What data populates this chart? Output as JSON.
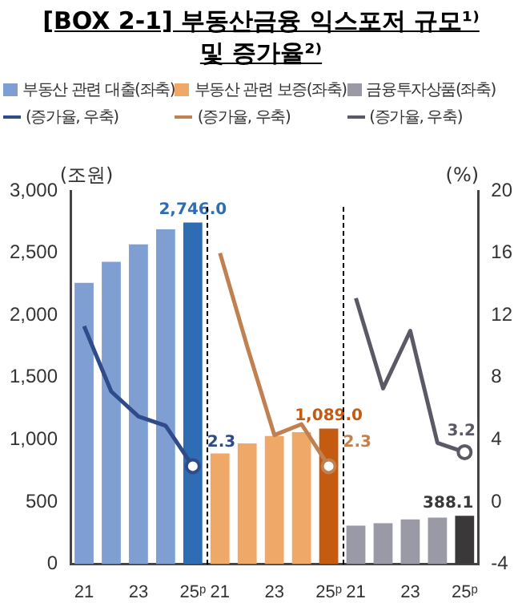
{
  "chart_data": {
    "type": "bar",
    "title": "[BOX 2-1] 부동산금융 익스포저 규모¹⁾ 및 증가율²⁾",
    "ylabel": "(조원)",
    "y2label": "(%)",
    "categories": [
      "21",
      null,
      "23",
      null,
      "25ᵖ",
      "21",
      null,
      "23",
      null,
      "25ᵖ",
      "21",
      null,
      "23",
      null,
      "25ᵖ"
    ],
    "series": [
      {
        "name": "부동산 관련 대출(좌축)",
        "color": "#7f9fd3",
        "colors": [
          "#7f9fd3",
          "#7f9fd3",
          "#7f9fd3",
          "#7f9fd3",
          "#2e6db4",
          null,
          null,
          null,
          null,
          null,
          null,
          null,
          null,
          null,
          null
        ],
        "values": [
          2260,
          2430,
          2570,
          2690,
          2746.0,
          null,
          null,
          null,
          null,
          null,
          null,
          null,
          null,
          null,
          null
        ],
        "value_labels": [
          null,
          null,
          null,
          null,
          "2,746.0",
          null,
          null,
          null,
          null,
          null,
          null,
          null,
          null,
          null,
          null
        ]
      },
      {
        "name": "부동산 관련 보증(좌축)",
        "color": "#f0a868",
        "colors": [
          null,
          null,
          null,
          null,
          null,
          "#f0a868",
          "#f0a868",
          "#f0a868",
          "#f0a868",
          "#c55a11",
          null,
          null,
          null,
          null,
          null
        ],
        "values": [
          null,
          null,
          null,
          null,
          null,
          890,
          970,
          1030,
          1060,
          1089.0,
          null,
          null,
          null,
          null,
          null
        ],
        "value_labels": [
          null,
          null,
          null,
          null,
          null,
          null,
          null,
          null,
          null,
          "1,089.0",
          null,
          null,
          null,
          null,
          null
        ]
      },
      {
        "name": "금융투자상품(좌축)",
        "color": "#9a99a6",
        "colors": [
          null,
          null,
          null,
          null,
          null,
          null,
          null,
          null,
          null,
          null,
          "#9a99a6",
          "#9a99a6",
          "#9a99a6",
          "#9a99a6",
          "#3a3838"
        ],
        "values": [
          null,
          null,
          null,
          null,
          null,
          null,
          null,
          null,
          null,
          null,
          310,
          330,
          360,
          375,
          388.1
        ],
        "value_labels": [
          null,
          null,
          null,
          null,
          null,
          null,
          null,
          null,
          null,
          null,
          null,
          null,
          null,
          null,
          "388.1"
        ]
      },
      {
        "name": "(증가율, 우축)",
        "type": "line",
        "axis": "y2",
        "color": "#2f4b8a",
        "values": [
          11.3,
          7.1,
          5.5,
          4.9,
          2.3,
          null,
          null,
          null,
          null,
          null,
          null,
          null,
          null,
          null,
          null
        ],
        "value_labels": [
          null,
          null,
          null,
          null,
          "2.3",
          null,
          null,
          null,
          null,
          null,
          null,
          null,
          null,
          null,
          null
        ]
      },
      {
        "name": "(증가율, 우축)",
        "type": "line",
        "axis": "y2",
        "color": "#c0804f",
        "values": [
          null,
          null,
          null,
          null,
          null,
          16,
          10,
          4.3,
          5.0,
          2.3,
          null,
          null,
          null,
          null,
          null
        ],
        "value_labels": [
          null,
          null,
          null,
          null,
          null,
          null,
          null,
          null,
          null,
          "2.3",
          null,
          null,
          null,
          null,
          null
        ]
      },
      {
        "name": "(증가율, 우축)",
        "type": "line",
        "axis": "y2",
        "color": "#5a5a66",
        "values": [
          null,
          null,
          null,
          null,
          null,
          null,
          null,
          null,
          null,
          null,
          13.1,
          7.3,
          11,
          3.8,
          3.2
        ],
        "value_labels": [
          null,
          null,
          null,
          null,
          null,
          null,
          null,
          null,
          null,
          null,
          null,
          null,
          null,
          null,
          "3.2"
        ]
      }
    ],
    "ylim": [
      0,
      3000
    ],
    "yticks": [
      0,
      500,
      {
        "value": 1000,
        "label": "1,000"
      },
      {
        "value": 1500,
        "label": "1,500"
      },
      {
        "value": 2000,
        "label": "2,000"
      },
      {
        "value": 2500,
        "label": "2,500"
      },
      {
        "value": 3000,
        "label": "3,000"
      }
    ],
    "y2lim": [
      -4,
      20
    ],
    "y2ticks": [
      -4,
      0,
      4,
      8,
      12,
      16,
      20
    ],
    "grid": false,
    "legend": "top"
  }
}
